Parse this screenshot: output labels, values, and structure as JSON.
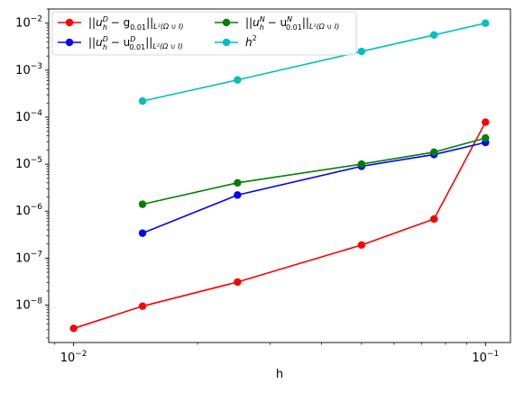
{
  "chart_data": {
    "type": "line",
    "xscale": "log",
    "yscale": "log",
    "xlabel": "h",
    "ylabel": "",
    "xlim": [
      0.0087,
      0.115
    ],
    "ylim": [
      1.6e-09,
      0.02
    ],
    "x_ticks": [
      {
        "value": 0.01,
        "base": "10",
        "exp": "−2"
      },
      {
        "value": 0.1,
        "base": "10",
        "exp": "−1"
      }
    ],
    "y_ticks": [
      {
        "value": 1e-08,
        "base": "10",
        "exp": "−8"
      },
      {
        "value": 1e-07,
        "base": "10",
        "exp": "−7"
      },
      {
        "value": 1e-06,
        "base": "10",
        "exp": "−6"
      },
      {
        "value": 1e-05,
        "base": "10",
        "exp": "−5"
      },
      {
        "value": 0.0001,
        "base": "10",
        "exp": "−4"
      },
      {
        "value": 0.001,
        "base": "10",
        "exp": "−3"
      },
      {
        "value": 0.01,
        "base": "10",
        "exp": "−2"
      }
    ],
    "grid": false,
    "legend_position": "top-left",
    "series": [
      {
        "name": "||u_h^D − g_0.01||_L²(Ω∪I)",
        "legend": {
          "a": "||",
          "b": "u",
          "b_sup": "D",
          "b_sub": "h",
          "c": " − g",
          "c_sub": "0.01",
          "d": "||",
          "d_sub": "L²(Ω ∪ I)"
        },
        "color": "#ff0000",
        "x": [
          0.01,
          0.0147,
          0.025,
          0.05,
          0.075,
          0.1
        ],
        "y": [
          3.2e-09,
          9.5e-09,
          3.1e-08,
          1.9e-07,
          6.8e-07,
          7.8e-05
        ]
      },
      {
        "name": "||u_h^D − u_0.01^D||_L²(Ω∪I)",
        "legend": {
          "a": "||",
          "b": "u",
          "b_sup": "D",
          "b_sub": "h",
          "c": " − u",
          "c_sup": "D",
          "c_sub": "0.01",
          "d": "||",
          "d_sub": "L²(Ω ∪ I)"
        },
        "color": "#0000ff",
        "x": [
          0.0147,
          0.025,
          0.05,
          0.075,
          0.1
        ],
        "y": [
          3.4e-07,
          2.2e-06,
          9e-06,
          1.6e-05,
          2.9e-05
        ]
      },
      {
        "name": "||u_h^N − u_0.01^N||_L²(Ω∪I)",
        "legend": {
          "a": "||",
          "b": "u",
          "b_sup": "N",
          "b_sub": "h",
          "c": " − u",
          "c_sup": "N",
          "c_sub": "0.01",
          "d": "||",
          "d_sub": "L²(Ω ∪ I)"
        },
        "color": "#008000",
        "x": [
          0.0147,
          0.025,
          0.05,
          0.075,
          0.1
        ],
        "y": [
          1.4e-06,
          4e-06,
          1e-05,
          1.8e-05,
          3.6e-05
        ]
      },
      {
        "name": "h²",
        "legend": {
          "b": "h",
          "b_sup": "2"
        },
        "color": "#00bfbf",
        "x": [
          0.0147,
          0.025,
          0.05,
          0.075,
          0.1
        ],
        "y": [
          0.00022,
          0.00062,
          0.0025,
          0.0056,
          0.01
        ]
      }
    ]
  }
}
